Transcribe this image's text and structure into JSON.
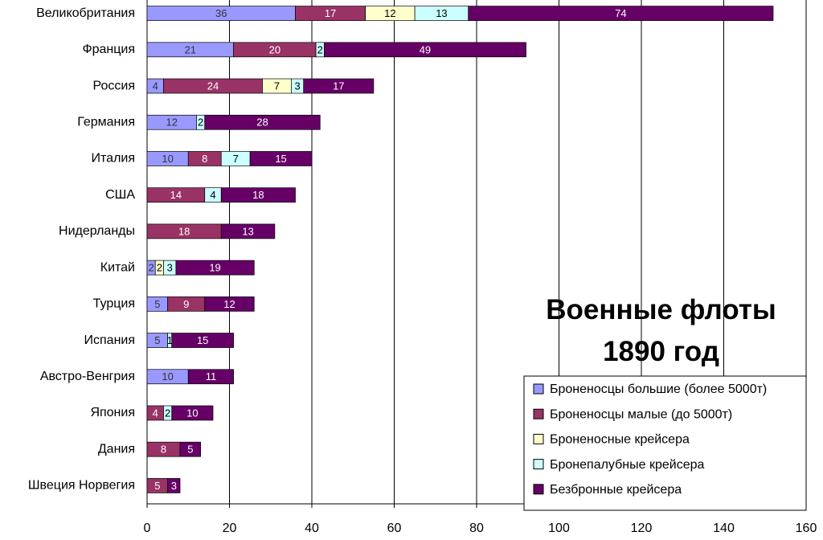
{
  "chart_data": {
    "type": "stacked_bar_horizontal",
    "title": "Военные флоты 1890 год",
    "categories": [
      "Великобритания",
      "Франция",
      "Россия",
      "Германия",
      "Италия",
      "США",
      "Нидерланды",
      "Китай",
      "Турция",
      "Испания",
      "Австро-Венгрия",
      "Япония",
      "Дания",
      "Швеция Норвегия"
    ],
    "series": [
      {
        "name": "Броненосцы большие (более 5000т)",
        "color": "#9999ff",
        "label_color": "#333333",
        "values": [
          36,
          21,
          4,
          12,
          10,
          null,
          null,
          2,
          5,
          5,
          10,
          null,
          null,
          null
        ]
      },
      {
        "name": "Броненосцы малые (до 5000т)",
        "color": "#993366",
        "label_color": "#ffffff",
        "values": [
          17,
          20,
          24,
          null,
          8,
          14,
          18,
          null,
          9,
          null,
          null,
          4,
          8,
          5
        ]
      },
      {
        "name": "Броненосные крейсера",
        "color": "#ffffcc",
        "label_color": "#000000",
        "values": [
          12,
          null,
          7,
          null,
          null,
          null,
          null,
          2,
          null,
          null,
          null,
          null,
          null,
          null
        ]
      },
      {
        "name": "Бронепалубные крейсера",
        "color": "#ccffff",
        "label_color": "#000000",
        "values": [
          13,
          2,
          3,
          2,
          7,
          4,
          null,
          3,
          null,
          1,
          null,
          2,
          null,
          null
        ]
      },
      {
        "name": "Безбронные крейсера",
        "color": "#660066",
        "label_color": "#ffffff",
        "values": [
          74,
          49,
          17,
          28,
          15,
          18,
          13,
          19,
          12,
          15,
          11,
          10,
          5,
          3
        ]
      }
    ],
    "xlim": [
      0,
      160
    ],
    "xticks": [
      0,
      20,
      40,
      60,
      80,
      100,
      120,
      140,
      160
    ],
    "grid": true,
    "legend": "bottom-right"
  }
}
